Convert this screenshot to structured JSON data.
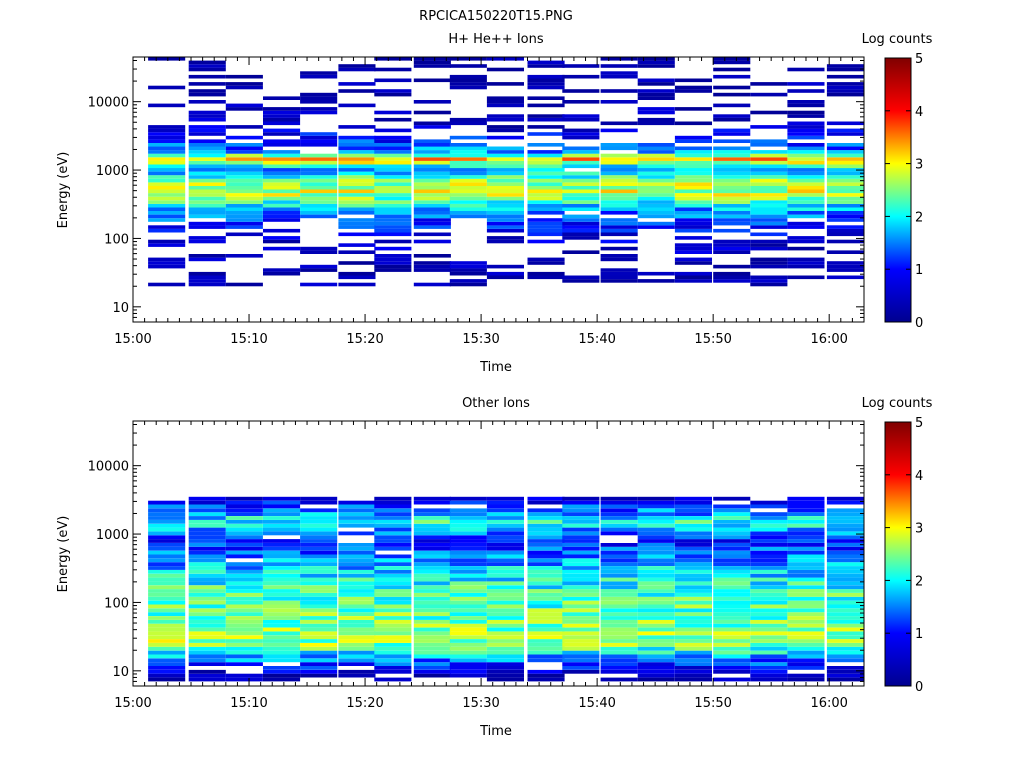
{
  "figure": {
    "title": "RPCICA150220T15.PNG"
  },
  "colorbar": {
    "stops": [
      "#00008f",
      "#0000ff",
      "#00ffff",
      "#ffff00",
      "#ff0000",
      "#800000"
    ]
  },
  "chart_data": [
    {
      "type": "heatmap",
      "title": "H+ He++ Ions",
      "xlabel": "Time",
      "ylabel": "Energy (eV)",
      "x_ticks": [
        "15:00",
        "15:10",
        "15:20",
        "15:30",
        "15:40",
        "15:50",
        "16:00"
      ],
      "xlim_minutes": [
        0,
        63
      ],
      "y_scale": "log",
      "ylim": [
        6,
        45000
      ],
      "y_ticks": [
        {
          "value": 10,
          "label": "10"
        },
        {
          "value": 100,
          "label": "100"
        },
        {
          "value": 1000,
          "label": "1000"
        },
        {
          "value": 10000,
          "label": "10000"
        }
      ],
      "colorbar_label": "Log counts",
      "colorbar_range": [
        0,
        5
      ],
      "colorbar_ticks": [
        "0",
        "1",
        "2",
        "3",
        "4",
        "5"
      ],
      "time_bin_start_minutes": [
        1.3,
        4.8,
        8.0,
        11.2,
        14.4,
        17.7,
        20.8,
        24.2,
        27.3,
        30.5,
        34.0,
        37.0,
        40.3,
        43.5,
        46.7,
        50.0,
        53.2,
        56.4,
        59.8
      ],
      "time_bin_width_minutes": 3.2,
      "energy_range_eV": [
        20,
        45000
      ],
      "energy_bins": 64,
      "band_profile": [
        {
          "energy_eV": 30,
          "log_counts": 0.2
        },
        {
          "energy_eV": 100,
          "log_counts": 0.6
        },
        {
          "energy_eV": 250,
          "log_counts": 1.5
        },
        {
          "energy_eV": 450,
          "log_counts": 2.8
        },
        {
          "energy_eV": 700,
          "log_counts": 2.6
        },
        {
          "energy_eV": 1000,
          "log_counts": 1.5
        },
        {
          "energy_eV": 1450,
          "log_counts": 3.3
        },
        {
          "energy_eV": 1800,
          "log_counts": 1.6
        },
        {
          "energy_eV": 5000,
          "log_counts": 0.3
        },
        {
          "energy_eV": 30000,
          "log_counts": 0.1
        }
      ],
      "background_fill": 0.42
    },
    {
      "type": "heatmap",
      "title": "Other Ions",
      "xlabel": "Time",
      "ylabel": "Energy (eV)",
      "x_ticks": [
        "15:00",
        "15:10",
        "15:20",
        "15:30",
        "15:40",
        "15:50",
        "16:00"
      ],
      "xlim_minutes": [
        0,
        63
      ],
      "y_scale": "log",
      "ylim": [
        6,
        45000
      ],
      "y_ticks": [
        {
          "value": 10,
          "label": "10"
        },
        {
          "value": 100,
          "label": "100"
        },
        {
          "value": 1000,
          "label": "1000"
        },
        {
          "value": 10000,
          "label": "10000"
        }
      ],
      "colorbar_label": "Log counts",
      "colorbar_range": [
        0,
        5
      ],
      "colorbar_ticks": [
        "0",
        "1",
        "2",
        "3",
        "4",
        "5"
      ],
      "time_bin_start_minutes": [
        1.3,
        4.8,
        8.0,
        11.2,
        14.4,
        17.7,
        20.8,
        24.2,
        27.3,
        30.5,
        34.0,
        37.0,
        40.3,
        43.5,
        46.7,
        50.0,
        53.2,
        56.4,
        59.8
      ],
      "time_bin_width_minutes": 3.2,
      "energy_range_eV": [
        7,
        3500
      ],
      "energy_bins": 48,
      "band_profile": [
        {
          "energy_eV": 8,
          "log_counts": 0.2
        },
        {
          "energy_eV": 12,
          "log_counts": 1.1
        },
        {
          "energy_eV": 25,
          "log_counts": 2.6
        },
        {
          "energy_eV": 60,
          "log_counts": 2.4
        },
        {
          "energy_eV": 150,
          "log_counts": 2.2
        },
        {
          "energy_eV": 400,
          "log_counts": 1.6
        },
        {
          "energy_eV": 800,
          "log_counts": 1.0
        },
        {
          "energy_eV": 1500,
          "log_counts": 2.1
        },
        {
          "energy_eV": 2500,
          "log_counts": 1.2
        },
        {
          "energy_eV": 3500,
          "log_counts": 0.5
        }
      ],
      "background_fill": 0.88
    }
  ]
}
